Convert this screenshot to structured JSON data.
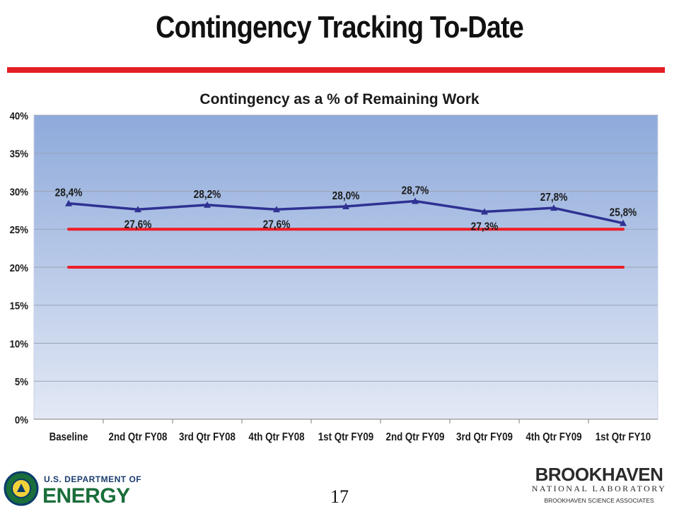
{
  "slide": {
    "title": "Contingency Tracking To-Date",
    "page_number": "17",
    "accent_color": "#e31e24"
  },
  "footer": {
    "doe_line1": "U.S. DEPARTMENT OF",
    "doe_line2": "ENERGY",
    "bnl_name": "BROOKHAVEN",
    "bnl_sub": "NATIONAL LABORATORY",
    "bnl_assoc": "BROOKHAVEN SCIENCE ASSOCIATES"
  },
  "chart_data": {
    "type": "line",
    "title": "Contingency as a % of Remaining Work",
    "xlabel": "",
    "ylabel": "",
    "categories": [
      "Baseline",
      "2nd Qtr FY08",
      "3rd Qtr FY08",
      "4th Qtr FY08",
      "1st Qtr FY09",
      "2nd Qtr FY09",
      "3rd Qtr FY09",
      "4th Qtr FY09",
      "1st Qtr FY10"
    ],
    "ylim": [
      0,
      40
    ],
    "yticks": [
      0,
      5,
      10,
      15,
      20,
      25,
      30,
      35,
      40
    ],
    "ytick_labels": [
      "0%",
      "5%",
      "10%",
      "15%",
      "20%",
      "25%",
      "30%",
      "35%",
      "40%"
    ],
    "grid": true,
    "legend": "none",
    "series": [
      {
        "values": [
          28.4,
          27.6,
          28.2,
          27.6,
          28.0,
          28.7,
          27.3,
          27.8,
          25.8
        ],
        "labels": [
          "28,4%",
          "27,6%",
          "28,2%",
          "27,6%",
          "28,0%",
          "28,7%",
          "27,3%",
          "27,8%",
          "25,8%"
        ],
        "label_positions": [
          "above",
          "below",
          "above",
          "below",
          "above",
          "above",
          "below",
          "above",
          "above"
        ],
        "color": "#2e3192",
        "marker": "triangle"
      },
      {
        "values": [
          25,
          25,
          25,
          25,
          25,
          25,
          25,
          25,
          25
        ],
        "color": "#ee1c25",
        "marker": "none"
      },
      {
        "values": [
          20,
          20,
          20,
          20,
          20,
          20,
          20,
          20,
          20
        ],
        "color": "#ee1c25",
        "marker": "none"
      }
    ],
    "plot_background": [
      "#8eaadb",
      "#e3e9f5"
    ]
  }
}
